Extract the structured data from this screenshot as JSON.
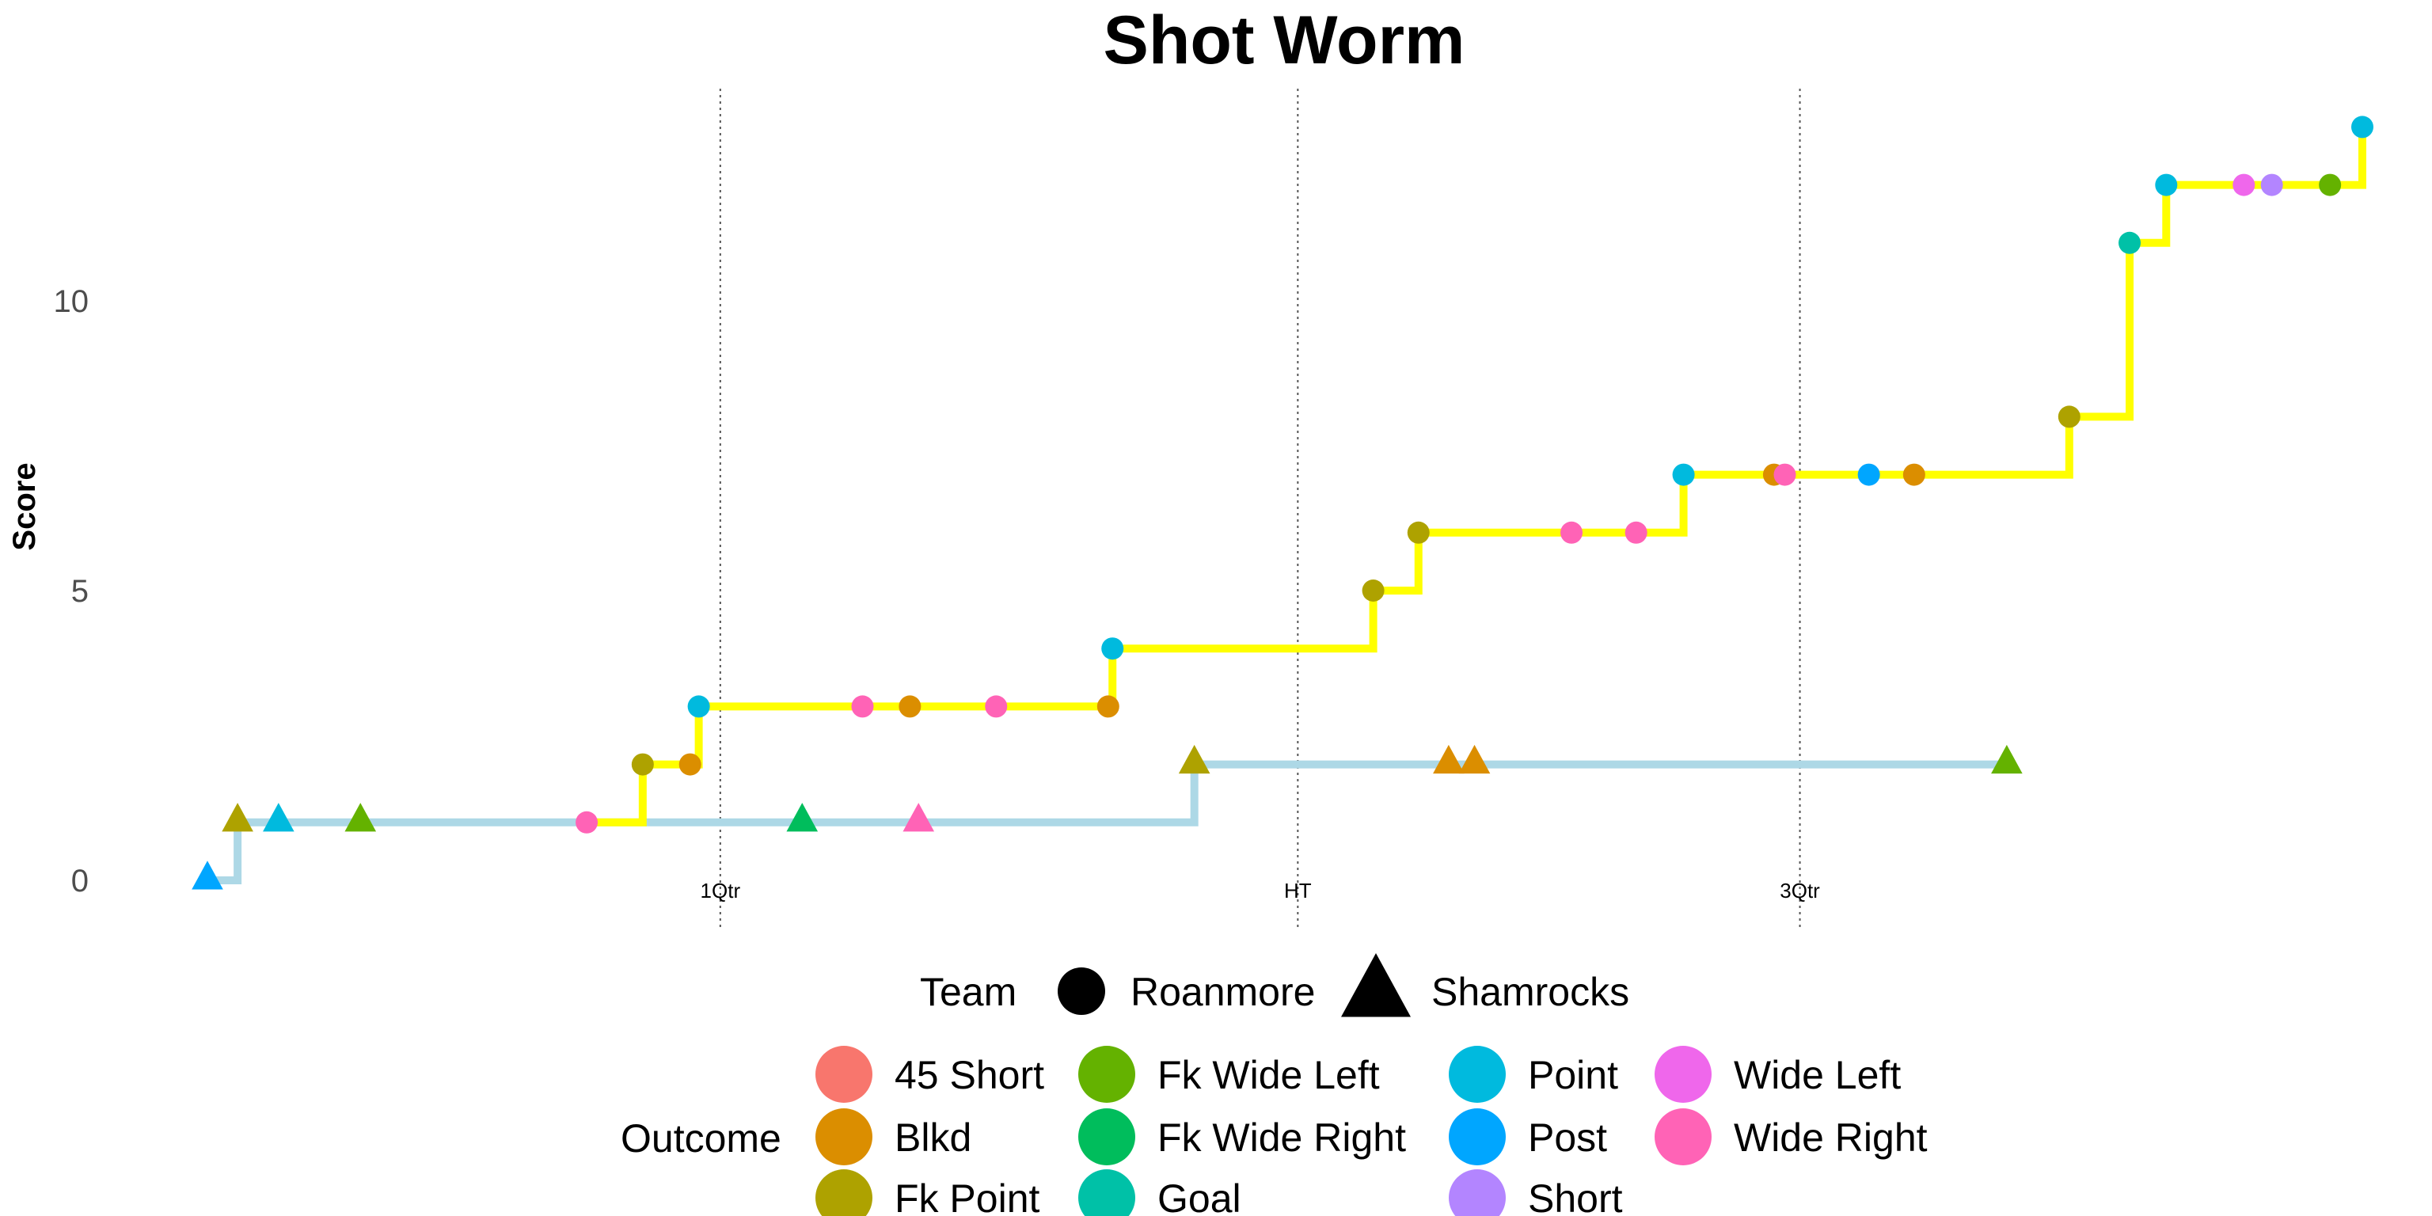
{
  "chart_data": {
    "type": "line",
    "title": "Shot Worm",
    "xlabel": "",
    "ylabel": "Score",
    "xlim": [
      0,
      100
    ],
    "ylim": [
      -0.5,
      13.3
    ],
    "yticks": [
      0,
      5,
      10
    ],
    "grid": false,
    "quarter_lines": [
      {
        "x": 23.8,
        "label": "1Qtr"
      },
      {
        "x": 50.6,
        "label": "HT"
      },
      {
        "x": 73.9,
        "label": "3Qtr"
      }
    ],
    "series": [
      {
        "name": "Roanmore",
        "shape": "circle",
        "color": "#ffff00",
        "points": [
          {
            "x": 17.6,
            "y": 1,
            "outcome": "Wide Right"
          },
          {
            "x": 20.2,
            "y": 2,
            "outcome": "Fk Point"
          },
          {
            "x": 22.4,
            "y": 2,
            "outcome": "Blkd"
          },
          {
            "x": 22.8,
            "y": 3,
            "outcome": "Point"
          },
          {
            "x": 30.4,
            "y": 3,
            "outcome": "Wide Right"
          },
          {
            "x": 32.6,
            "y": 3,
            "outcome": "Blkd"
          },
          {
            "x": 36.6,
            "y": 3,
            "outcome": "Wide Right"
          },
          {
            "x": 41.8,
            "y": 3,
            "outcome": "Blkd"
          },
          {
            "x": 42.0,
            "y": 4,
            "outcome": "Point"
          },
          {
            "x": 54.1,
            "y": 5,
            "outcome": "Fk Point"
          },
          {
            "x": 56.2,
            "y": 6,
            "outcome": "Fk Point"
          },
          {
            "x": 63.3,
            "y": 6,
            "outcome": "Wide Right"
          },
          {
            "x": 66.3,
            "y": 6,
            "outcome": "Wide Right"
          },
          {
            "x": 68.5,
            "y": 7,
            "outcome": "Point"
          },
          {
            "x": 72.7,
            "y": 7,
            "outcome": "Blkd"
          },
          {
            "x": 73.2,
            "y": 7,
            "outcome": "Wide Right"
          },
          {
            "x": 77.1,
            "y": 7,
            "outcome": "Post"
          },
          {
            "x": 79.2,
            "y": 7,
            "outcome": "Blkd"
          },
          {
            "x": 86.4,
            "y": 8,
            "outcome": "Fk Point"
          },
          {
            "x": 89.2,
            "y": 11,
            "outcome": "Goal"
          },
          {
            "x": 90.9,
            "y": 12,
            "outcome": "Point"
          },
          {
            "x": 94.5,
            "y": 12,
            "outcome": "Wide Left"
          },
          {
            "x": 95.8,
            "y": 12,
            "outcome": "Short"
          },
          {
            "x": 98.5,
            "y": 12,
            "outcome": "Fk Wide Left"
          },
          {
            "x": 100.0,
            "y": 13,
            "outcome": "Point"
          }
        ]
      },
      {
        "name": "Shamrocks",
        "shape": "triangle",
        "color": "#add8e6",
        "points": [
          {
            "x": 0.0,
            "y": 0,
            "outcome": "Post"
          },
          {
            "x": 1.4,
            "y": 1,
            "outcome": "Fk Point"
          },
          {
            "x": 3.3,
            "y": 1,
            "outcome": "Point"
          },
          {
            "x": 7.1,
            "y": 1,
            "outcome": "Fk Wide Left"
          },
          {
            "x": 27.6,
            "y": 1,
            "outcome": "Fk Wide Right"
          },
          {
            "x": 33.0,
            "y": 1,
            "outcome": "Wide Right"
          },
          {
            "x": 45.8,
            "y": 2,
            "outcome": "Fk Point"
          },
          {
            "x": 57.6,
            "y": 2,
            "outcome": "Blkd"
          },
          {
            "x": 58.8,
            "y": 2,
            "outcome": "Blkd"
          },
          {
            "x": 83.5,
            "y": 2,
            "outcome": "Fk Wide Left"
          }
        ]
      }
    ],
    "outcome_colors": {
      "45 Short": "#f8766d",
      "Blkd": "#db8e00",
      "Fk Point": "#aea200",
      "Fk Wide Left": "#64b200",
      "Fk Wide Right": "#00bd5c",
      "Goal": "#00c1a7",
      "Point": "#00bade",
      "Post": "#00a6ff",
      "Short": "#b385ff",
      "Wide Left": "#ef67eb",
      "Wide Right": "#ff63b6"
    },
    "legend": {
      "position": "bottom",
      "team_title": "Team",
      "teams": [
        {
          "label": "Roanmore",
          "shape": "circle"
        },
        {
          "label": "Shamrocks",
          "shape": "triangle"
        }
      ],
      "outcome_title": "Outcome",
      "outcomes": [
        "45 Short",
        "Blkd",
        "Fk Point",
        "Fk Wide Left",
        "Fk Wide Right",
        "Goal",
        "Point",
        "Post",
        "Short",
        "Wide Left",
        "Wide Right"
      ]
    }
  }
}
